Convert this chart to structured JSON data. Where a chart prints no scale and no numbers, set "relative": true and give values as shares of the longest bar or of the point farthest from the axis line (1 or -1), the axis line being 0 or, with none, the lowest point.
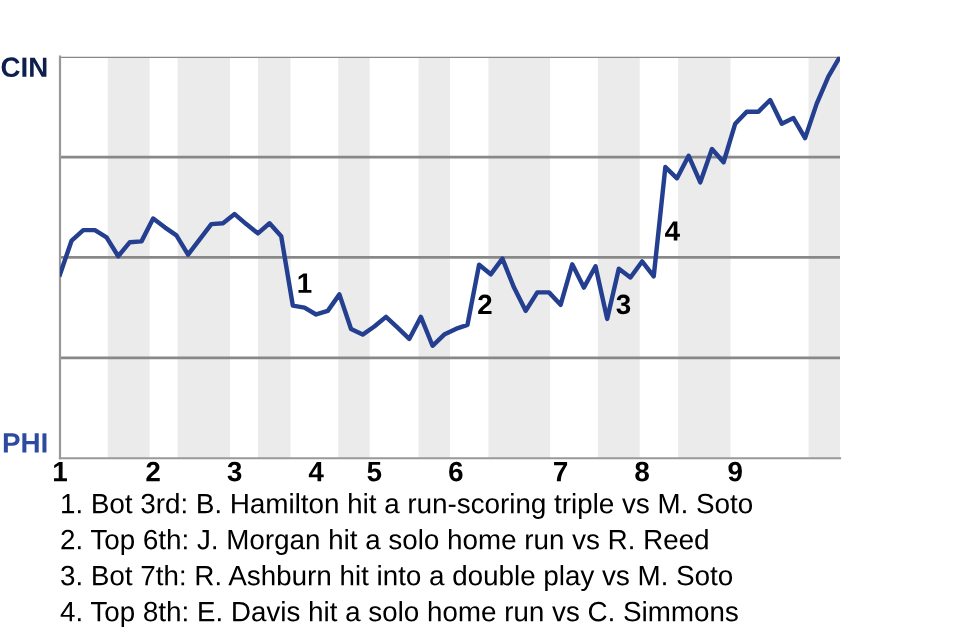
{
  "chart_data": {
    "type": "line",
    "relative": true,
    "categories": [
      "1",
      null,
      null,
      null,
      null,
      null,
      null,
      null,
      "2",
      null,
      null,
      null,
      null,
      null,
      null,
      "3",
      null,
      null,
      null,
      null,
      null,
      null,
      "4",
      null,
      null,
      null,
      null,
      "5",
      null,
      null,
      null,
      null,
      null,
      null,
      "6",
      null,
      null,
      null,
      null,
      null,
      null,
      null,
      null,
      "7",
      null,
      null,
      null,
      null,
      null,
      null,
      "8",
      null,
      null,
      null,
      null,
      null,
      null,
      null,
      "9",
      null,
      null,
      null,
      null,
      null,
      null,
      null,
      null,
      null
    ],
    "series": [
      {
        "color": "#243f8f",
        "values": [
          0.458,
          0.542,
          0.568,
          0.568,
          0.55,
          0.503,
          0.538,
          0.54,
          0.597,
          0.575,
          0.555,
          0.507,
          0.545,
          0.583,
          0.585,
          0.608,
          0.583,
          0.56,
          0.585,
          0.553,
          0.38,
          0.375,
          0.358,
          0.367,
          0.408,
          0.322,
          0.308,
          0.328,
          0.352,
          0.325,
          0.297,
          0.352,
          0.28,
          0.308,
          0.322,
          0.332,
          0.482,
          0.458,
          0.497,
          0.425,
          0.367,
          0.413,
          0.413,
          0.382,
          0.483,
          0.425,
          0.478,
          0.347,
          0.472,
          0.45,
          0.49,
          0.453,
          0.725,
          0.697,
          0.753,
          0.687,
          0.77,
          0.737,
          0.833,
          0.863,
          0.863,
          0.892,
          0.833,
          0.847,
          0.797,
          0.883,
          0.95,
          1
        ]
      }
    ],
    "ref_lines": [
      {
        "axis": "y",
        "value": 0.25,
        "color": "#888888"
      },
      {
        "axis": "y",
        "value": 0.5,
        "color": "#888888"
      },
      {
        "axis": "y",
        "value": 0.75,
        "color": "#888888"
      },
      {
        "axis": "y",
        "value": 1,
        "color": "#888888"
      }
    ],
    "annotations": [
      "CIN",
      "PHI",
      "1",
      "2",
      "3",
      "4",
      "1. Bot 3rd: B. Hamilton hit a run-scoring triple vs M. Soto",
      "2. Top 6th: J. Morgan hit a solo home run vs R. Reed",
      "3. Bot 7th: R. Ashburn hit into a double play vs M. Soto",
      "4. Top 8th: E. Davis hit a solo home run vs C. Simmons"
    ]
  }
}
